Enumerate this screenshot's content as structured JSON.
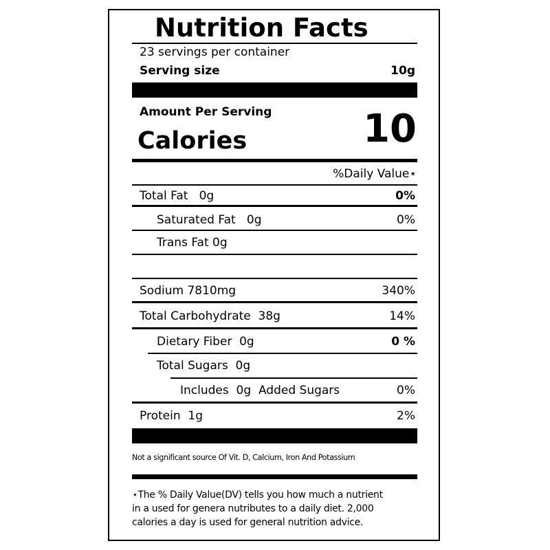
{
  "title": "Nutrition Facts",
  "servings_per_container": "23 servings per container",
  "serving_size": {
    "label": "Serving size",
    "value": "10g"
  },
  "amount_per_serving": "Amount Per Serving",
  "calories": {
    "label": "Calories",
    "value": "10"
  },
  "daily_value_header": "%Daily Value⋆",
  "nutrients": [
    {
      "label": "Total Fat   0g",
      "dv": "0%"
    },
    {
      "label": "Saturated Fat   0g",
      "dv": "0%"
    },
    {
      "label": "Trans Fat 0g",
      "dv": ""
    },
    {
      "label": "Sodium 7810mg",
      "dv": "340%"
    },
    {
      "label": "Total Carbohydrate  38g",
      "dv": "14%"
    },
    {
      "label": "Dietary Fiber  0g",
      "dv": "0 %"
    },
    {
      "label": "Total Sugars  0g",
      "dv": ""
    },
    {
      "label": "Includes  0g  Added Sugars",
      "dv": "0%"
    },
    {
      "label": "Protein  1g",
      "dv": "2%"
    }
  ],
  "not_significant": "Not a significant source Of Vit. D, Calcium, Iron And Potassium",
  "footnote": [
    "⋆The % Daily Value(DV) tells you how much a nutrient",
    "in a used for genera nutributes to a daily diet. 2,000",
    "calories a day is used for general nutrition advice."
  ]
}
